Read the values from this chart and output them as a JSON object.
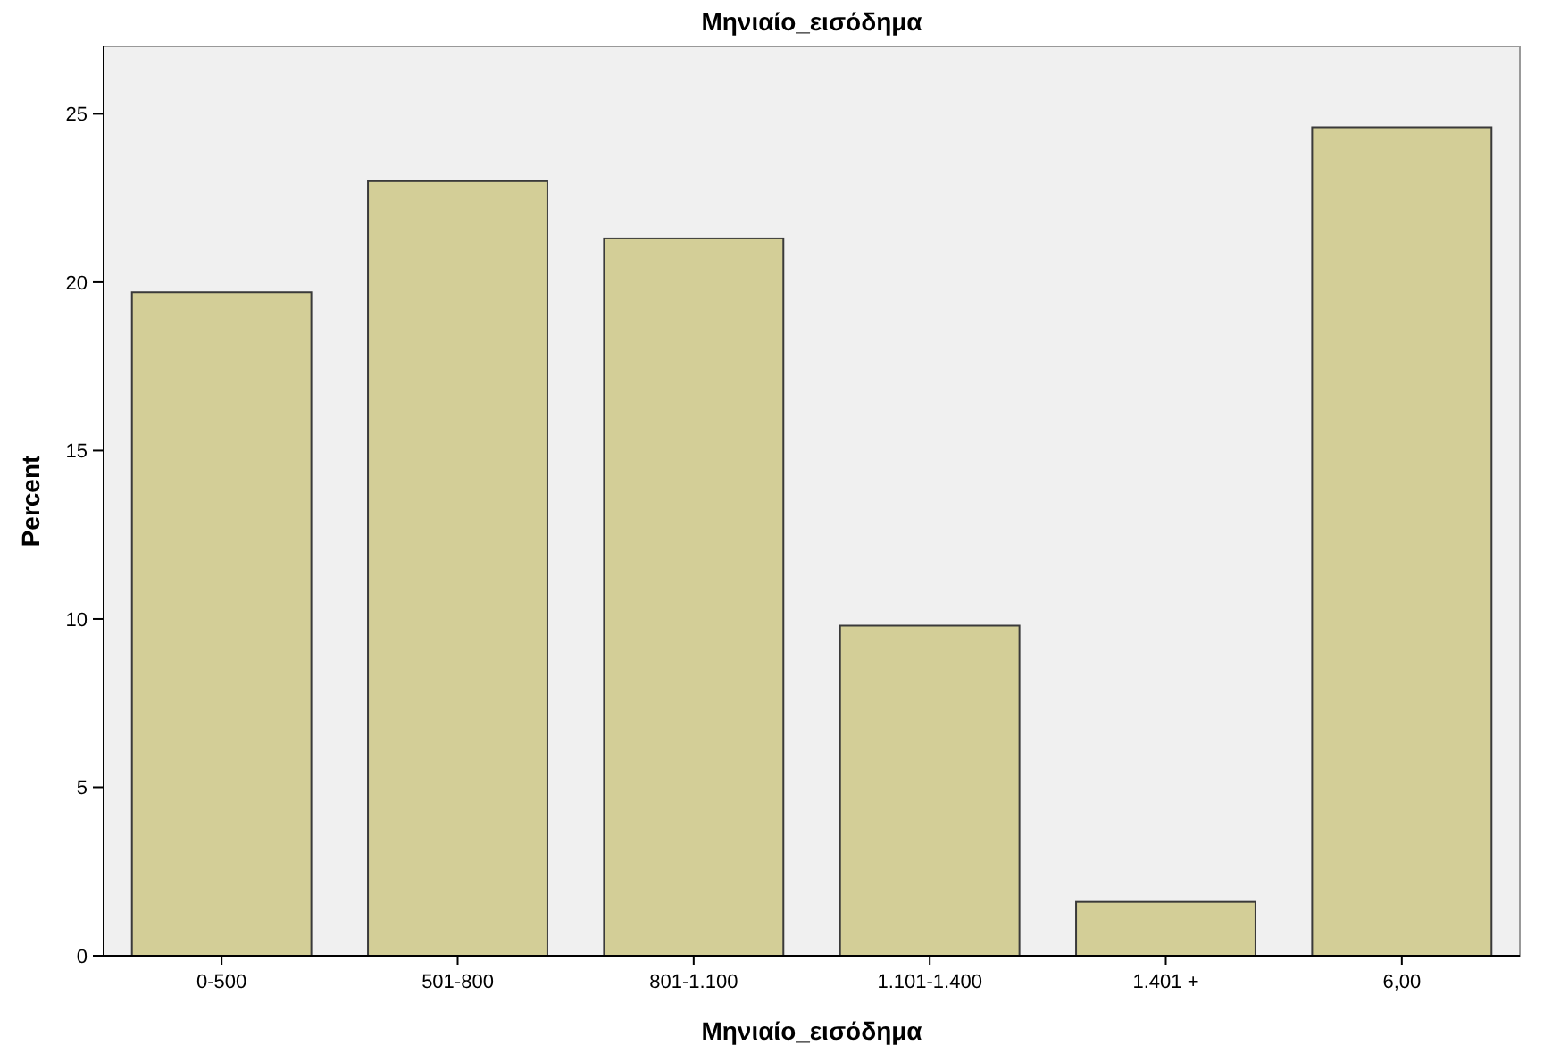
{
  "chart_data": {
    "type": "bar",
    "title": "Μηνιαίο_εισόδημα",
    "xlabel": "Μηνιαίο_εισόδημα",
    "ylabel": "Percent",
    "categories": [
      "0-500",
      "501-800",
      "801-1.100",
      "1.101-1.400",
      "1.401 +",
      "6,00"
    ],
    "values": [
      19.7,
      23.0,
      21.3,
      9.8,
      1.6,
      24.6
    ],
    "color": "#d3ce97",
    "ylim": [
      0,
      27
    ],
    "yticks": [
      0,
      5,
      10,
      15,
      20,
      25
    ],
    "grid": false
  }
}
